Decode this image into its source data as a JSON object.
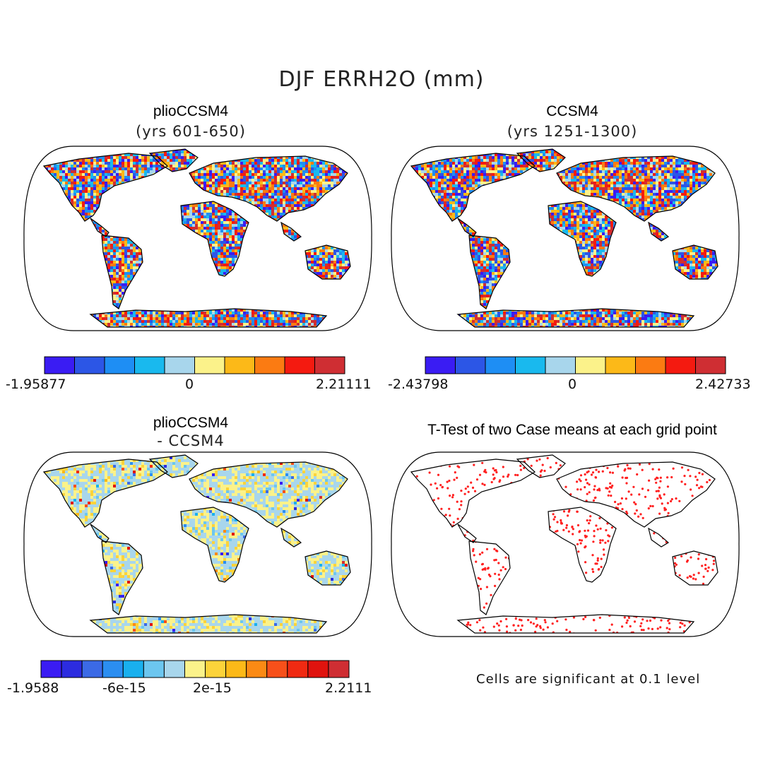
{
  "title": "DJF ERRH2O (mm)",
  "panels": [
    {
      "id": "p1",
      "title": "plioCCSM4",
      "subtitle": "(yrs 601-650)",
      "kind": "field",
      "seed": 11,
      "colorbar": {
        "colors": [
          "#3a1cf3",
          "#2c56e6",
          "#1e8ef4",
          "#19b9ee",
          "#a8d6ec",
          "#fbf28a",
          "#fcb918",
          "#fb7b12",
          "#f41a10",
          "#cf2e33"
        ],
        "labels": [
          "-1.95877",
          "0",
          "2.21111"
        ]
      }
    },
    {
      "id": "p2",
      "title": "CCSM4",
      "subtitle": "(yrs 1251-1300)",
      "kind": "field",
      "seed": 23,
      "colorbar": {
        "colors": [
          "#3a1cf3",
          "#2c56e6",
          "#1e8ef4",
          "#19b9ee",
          "#a8d6ec",
          "#fbf28a",
          "#fcb918",
          "#fb7b12",
          "#f41a10",
          "#cf2e33"
        ],
        "labels": [
          "-2.43798",
          "0",
          "2.42733"
        ]
      }
    },
    {
      "id": "p3",
      "title": "plioCCSM4",
      "subtitle": "- CCSM4",
      "kind": "diff",
      "seed": 37,
      "colorbar": {
        "colors": [
          "#3a1cf3",
          "#2c2ce0",
          "#3b6ae6",
          "#2b8ef1",
          "#19b0ee",
          "#6cc6ef",
          "#a8d6ec",
          "#fbf28a",
          "#fcd33a",
          "#fcb918",
          "#fb8a14",
          "#f7501a",
          "#f02a12",
          "#e0130e",
          "#cf2e33"
        ],
        "labels": [
          "-1.9588",
          "-6e-15",
          "2e-15",
          "2.2111"
        ]
      }
    },
    {
      "id": "p4",
      "title": "T-Test of two Case means at each grid point",
      "subtitle": "",
      "kind": "ttest",
      "seed": 51,
      "note": "Cells are significant at 0.1 level"
    }
  ]
}
